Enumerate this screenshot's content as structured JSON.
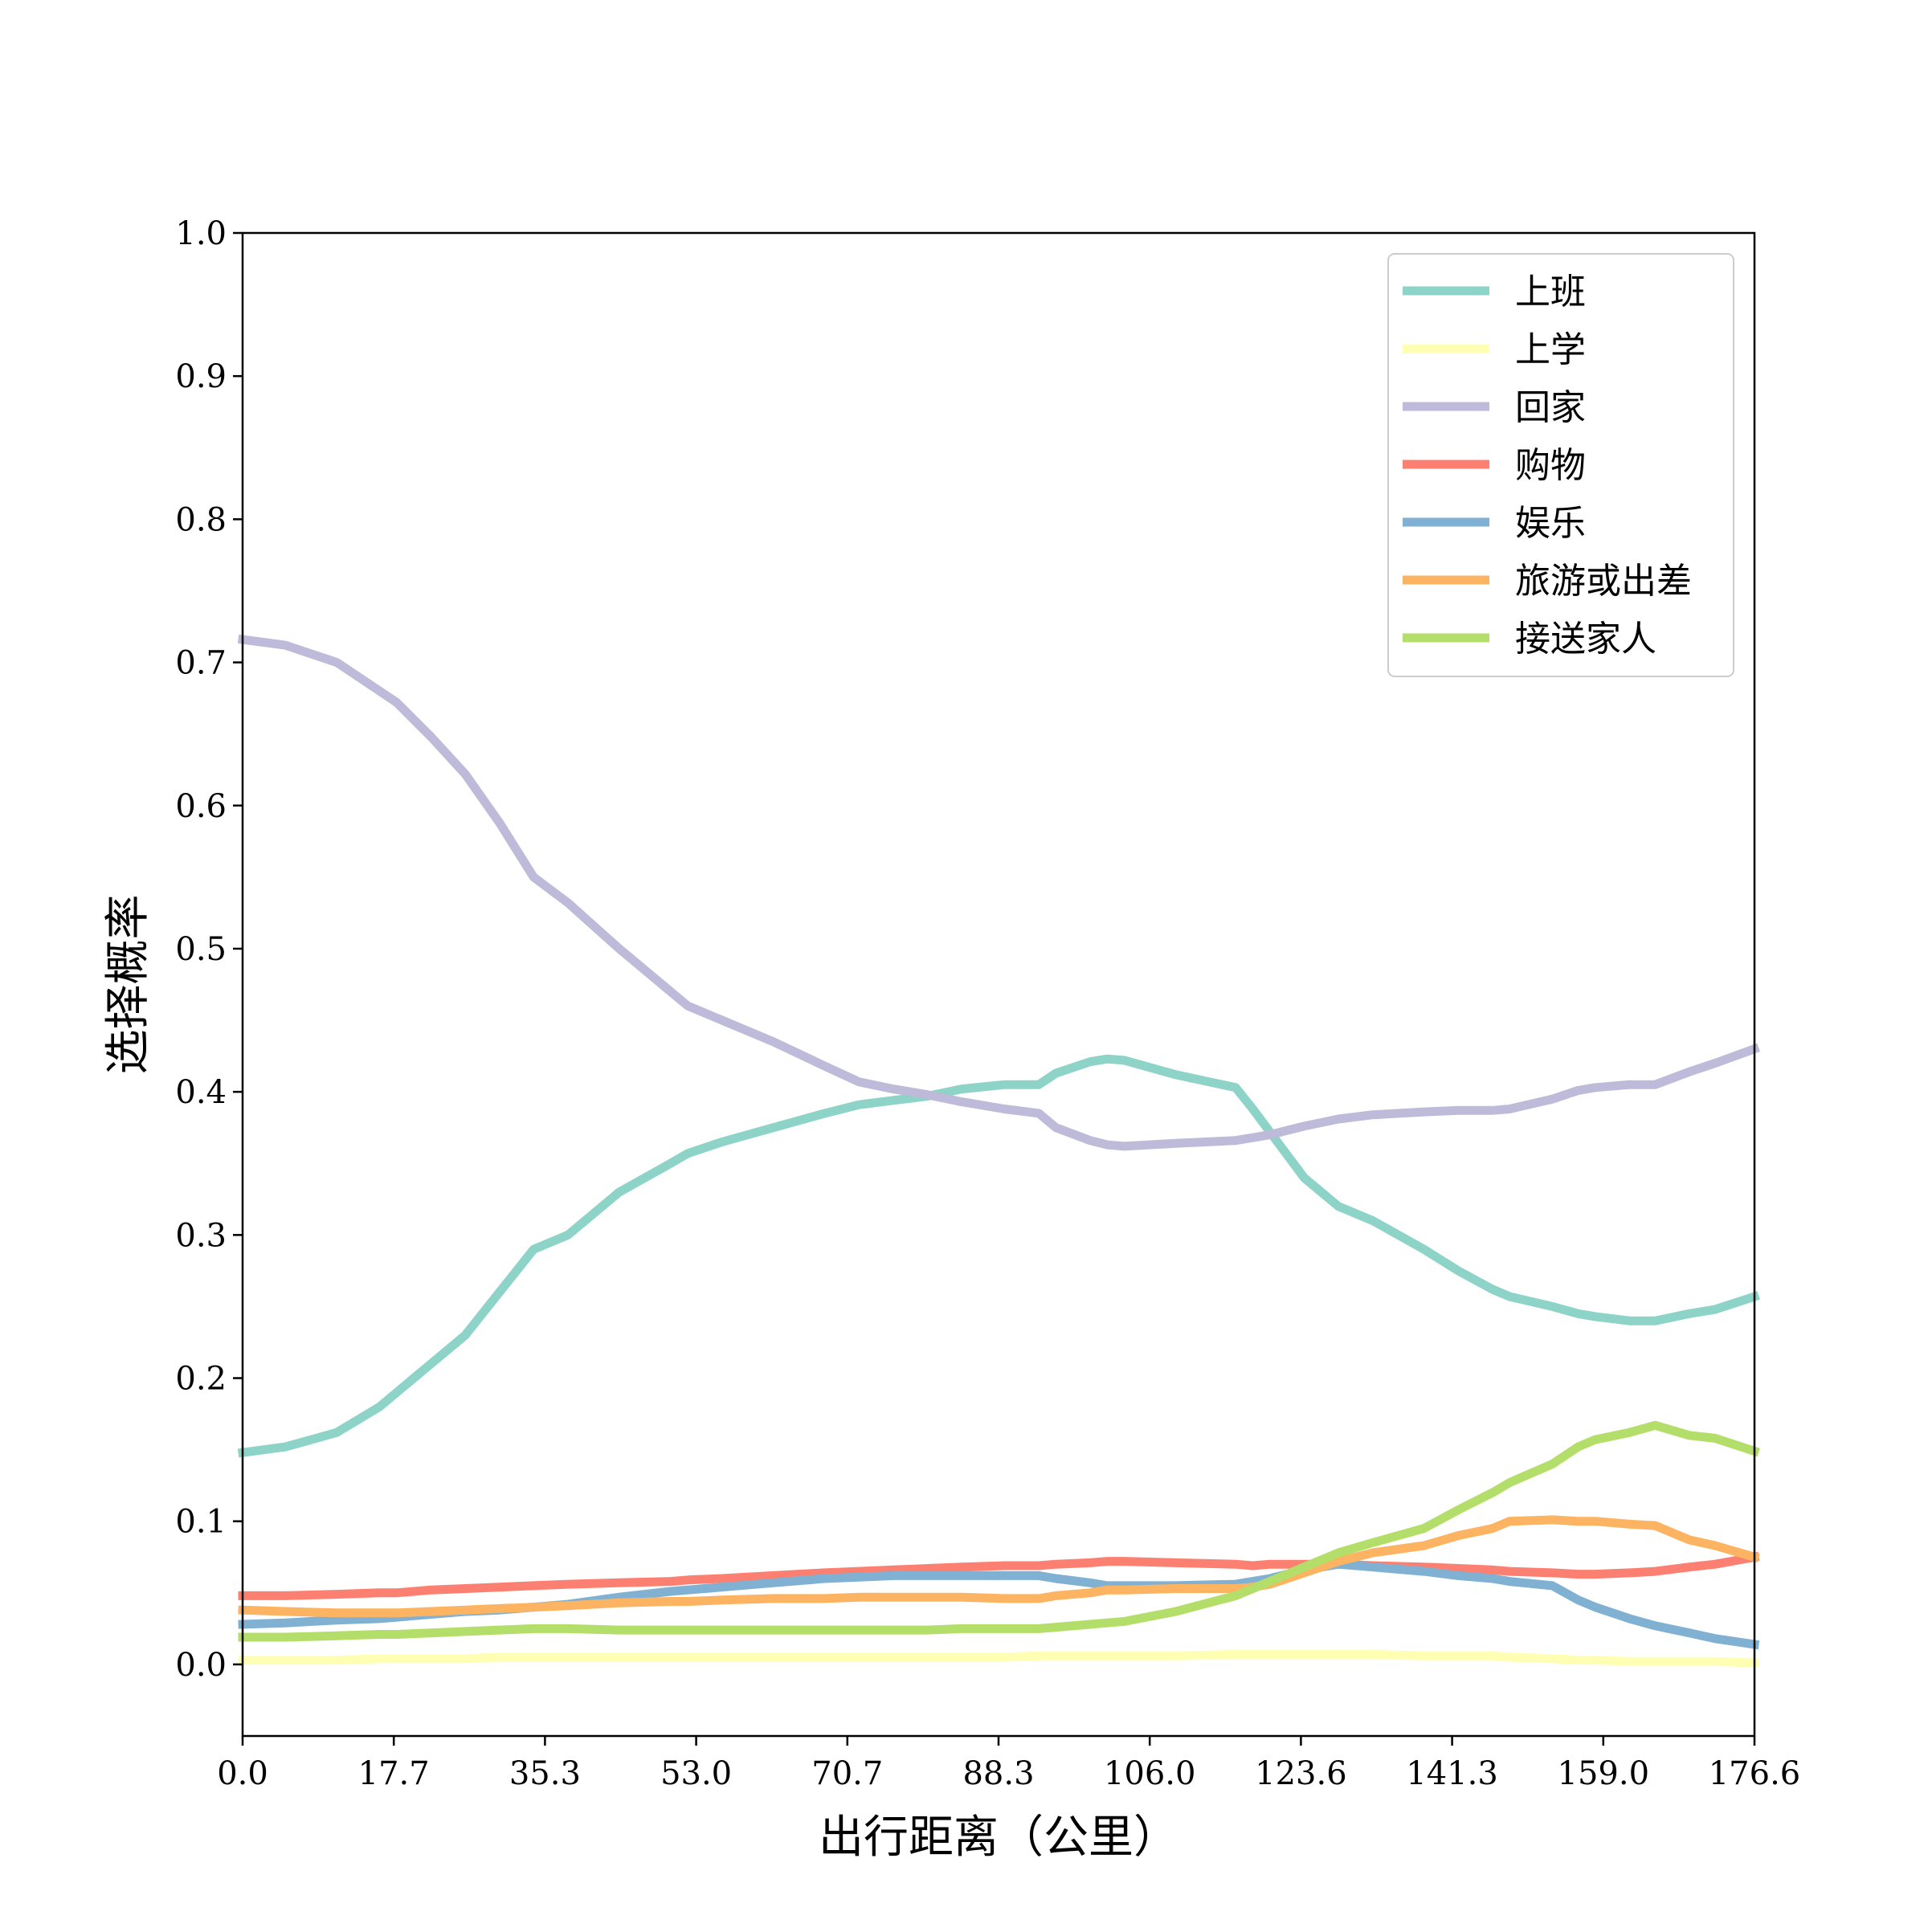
{
  "chart_data": {
    "type": "line",
    "xlabel": "出行距离（公里）",
    "ylabel": "选择概率",
    "xlim": [
      0,
      176.6
    ],
    "ylim": [
      -0.05,
      1.0
    ],
    "xticks": [
      "0.0",
      "17.7",
      "35.3",
      "53.0",
      "70.7",
      "88.3",
      "106.0",
      "123.6",
      "141.3",
      "159.0",
      "176.6"
    ],
    "xtick_values": [
      0,
      17.66,
      35.32,
      52.98,
      70.64,
      88.3,
      105.96,
      123.62,
      141.28,
      158.94,
      176.6
    ],
    "yticks": [
      "0.0",
      "0.1",
      "0.2",
      "0.3",
      "0.4",
      "0.5",
      "0.6",
      "0.7",
      "0.8",
      "0.9",
      "1.0"
    ],
    "ytick_values": [
      0,
      0.1,
      0.2,
      0.3,
      0.4,
      0.5,
      0.6,
      0.7,
      0.8,
      0.9,
      1.0
    ],
    "grid": false,
    "legend_position": "top-right",
    "x": [
      0,
      5,
      11,
      16,
      18,
      22,
      26,
      30,
      34,
      38,
      44,
      50,
      52,
      56,
      62,
      68,
      72,
      76,
      80,
      84,
      89,
      93,
      95,
      99,
      101,
      103,
      109,
      116,
      118,
      120,
      124,
      128,
      132,
      138,
      142,
      146,
      148,
      153,
      156,
      158,
      162,
      165,
      169,
      172,
      176.6
    ],
    "series": [
      {
        "name": "上班",
        "color": "#8dd3c7",
        "values": [
          0.148,
          0.152,
          0.162,
          0.18,
          0.19,
          0.21,
          0.23,
          0.26,
          0.29,
          0.3,
          0.33,
          0.35,
          0.357,
          0.365,
          0.375,
          0.385,
          0.391,
          0.394,
          0.397,
          0.402,
          0.405,
          0.405,
          0.413,
          0.421,
          0.423,
          0.422,
          0.412,
          0.403,
          0.388,
          0.372,
          0.34,
          0.32,
          0.31,
          0.29,
          0.275,
          0.262,
          0.257,
          0.25,
          0.245,
          0.243,
          0.24,
          0.24,
          0.245,
          0.248,
          0.257
        ]
      },
      {
        "name": "上学",
        "color": "#ffffb3",
        "values": [
          0.003,
          0.003,
          0.003,
          0.004,
          0.004,
          0.004,
          0.004,
          0.005,
          0.005,
          0.005,
          0.005,
          0.005,
          0.005,
          0.005,
          0.005,
          0.005,
          0.005,
          0.005,
          0.005,
          0.005,
          0.005,
          0.006,
          0.006,
          0.006,
          0.006,
          0.006,
          0.006,
          0.007,
          0.007,
          0.007,
          0.007,
          0.007,
          0.007,
          0.006,
          0.006,
          0.006,
          0.005,
          0.004,
          0.003,
          0.003,
          0.002,
          0.002,
          0.002,
          0.002,
          0.001
        ]
      },
      {
        "name": "回家",
        "color": "#bebada",
        "values": [
          0.716,
          0.712,
          0.7,
          0.68,
          0.672,
          0.648,
          0.622,
          0.588,
          0.55,
          0.532,
          0.5,
          0.47,
          0.46,
          0.45,
          0.435,
          0.418,
          0.407,
          0.402,
          0.398,
          0.393,
          0.388,
          0.385,
          0.375,
          0.366,
          0.363,
          0.362,
          0.364,
          0.366,
          0.368,
          0.37,
          0.376,
          0.381,
          0.384,
          0.386,
          0.387,
          0.387,
          0.388,
          0.395,
          0.401,
          0.403,
          0.405,
          0.405,
          0.414,
          0.42,
          0.43
        ]
      },
      {
        "name": "购物",
        "color": "#fb8072",
        "values": [
          0.048,
          0.048,
          0.049,
          0.05,
          0.05,
          0.052,
          0.053,
          0.054,
          0.055,
          0.056,
          0.057,
          0.058,
          0.059,
          0.06,
          0.062,
          0.064,
          0.065,
          0.066,
          0.067,
          0.068,
          0.069,
          0.069,
          0.07,
          0.071,
          0.072,
          0.072,
          0.071,
          0.07,
          0.069,
          0.07,
          0.07,
          0.07,
          0.069,
          0.068,
          0.067,
          0.066,
          0.065,
          0.064,
          0.063,
          0.063,
          0.064,
          0.065,
          0.068,
          0.07,
          0.075
        ]
      },
      {
        "name": "娱乐",
        "color": "#80b1d3",
        "values": [
          0.028,
          0.029,
          0.031,
          0.032,
          0.033,
          0.035,
          0.037,
          0.038,
          0.04,
          0.042,
          0.047,
          0.051,
          0.052,
          0.054,
          0.057,
          0.06,
          0.061,
          0.062,
          0.062,
          0.062,
          0.062,
          0.062,
          0.06,
          0.057,
          0.055,
          0.055,
          0.055,
          0.056,
          0.058,
          0.06,
          0.066,
          0.07,
          0.068,
          0.065,
          0.062,
          0.06,
          0.058,
          0.055,
          0.045,
          0.04,
          0.032,
          0.027,
          0.022,
          0.018,
          0.014
        ]
      },
      {
        "name": "旅游或出差",
        "color": "#fdb462",
        "values": [
          0.038,
          0.037,
          0.036,
          0.036,
          0.036,
          0.037,
          0.038,
          0.039,
          0.04,
          0.041,
          0.043,
          0.044,
          0.044,
          0.045,
          0.046,
          0.046,
          0.047,
          0.047,
          0.047,
          0.047,
          0.046,
          0.046,
          0.048,
          0.05,
          0.052,
          0.052,
          0.053,
          0.053,
          0.054,
          0.056,
          0.064,
          0.072,
          0.078,
          0.083,
          0.09,
          0.095,
          0.1,
          0.101,
          0.1,
          0.1,
          0.098,
          0.097,
          0.087,
          0.083,
          0.075
        ]
      },
      {
        "name": "接送家人",
        "color": "#b3de69",
        "values": [
          0.019,
          0.019,
          0.02,
          0.021,
          0.021,
          0.022,
          0.023,
          0.024,
          0.025,
          0.025,
          0.024,
          0.024,
          0.024,
          0.024,
          0.024,
          0.024,
          0.024,
          0.024,
          0.024,
          0.025,
          0.025,
          0.025,
          0.026,
          0.028,
          0.029,
          0.03,
          0.037,
          0.048,
          0.053,
          0.058,
          0.068,
          0.078,
          0.085,
          0.095,
          0.108,
          0.12,
          0.127,
          0.14,
          0.152,
          0.157,
          0.162,
          0.167,
          0.16,
          0.158,
          0.149
        ]
      }
    ]
  }
}
